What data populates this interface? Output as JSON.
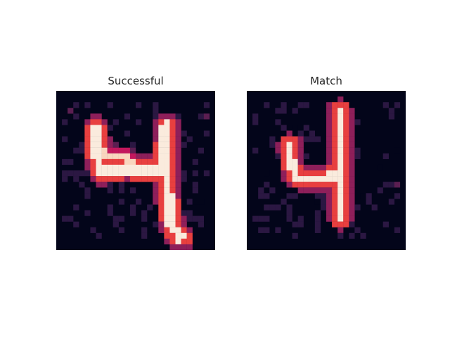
{
  "panels": [
    {
      "title": "Successful"
    },
    {
      "title": "Match"
    }
  ],
  "colors": {
    "background": "#03051a",
    "colormap": [
      "#03051a",
      "#2b1742",
      "#5b1e51",
      "#8e1f5a",
      "#c3175d",
      "#e83f3f",
      "#f37651",
      "#f6a47c",
      "#f9d6bf",
      "#faebdd"
    ]
  }
}
